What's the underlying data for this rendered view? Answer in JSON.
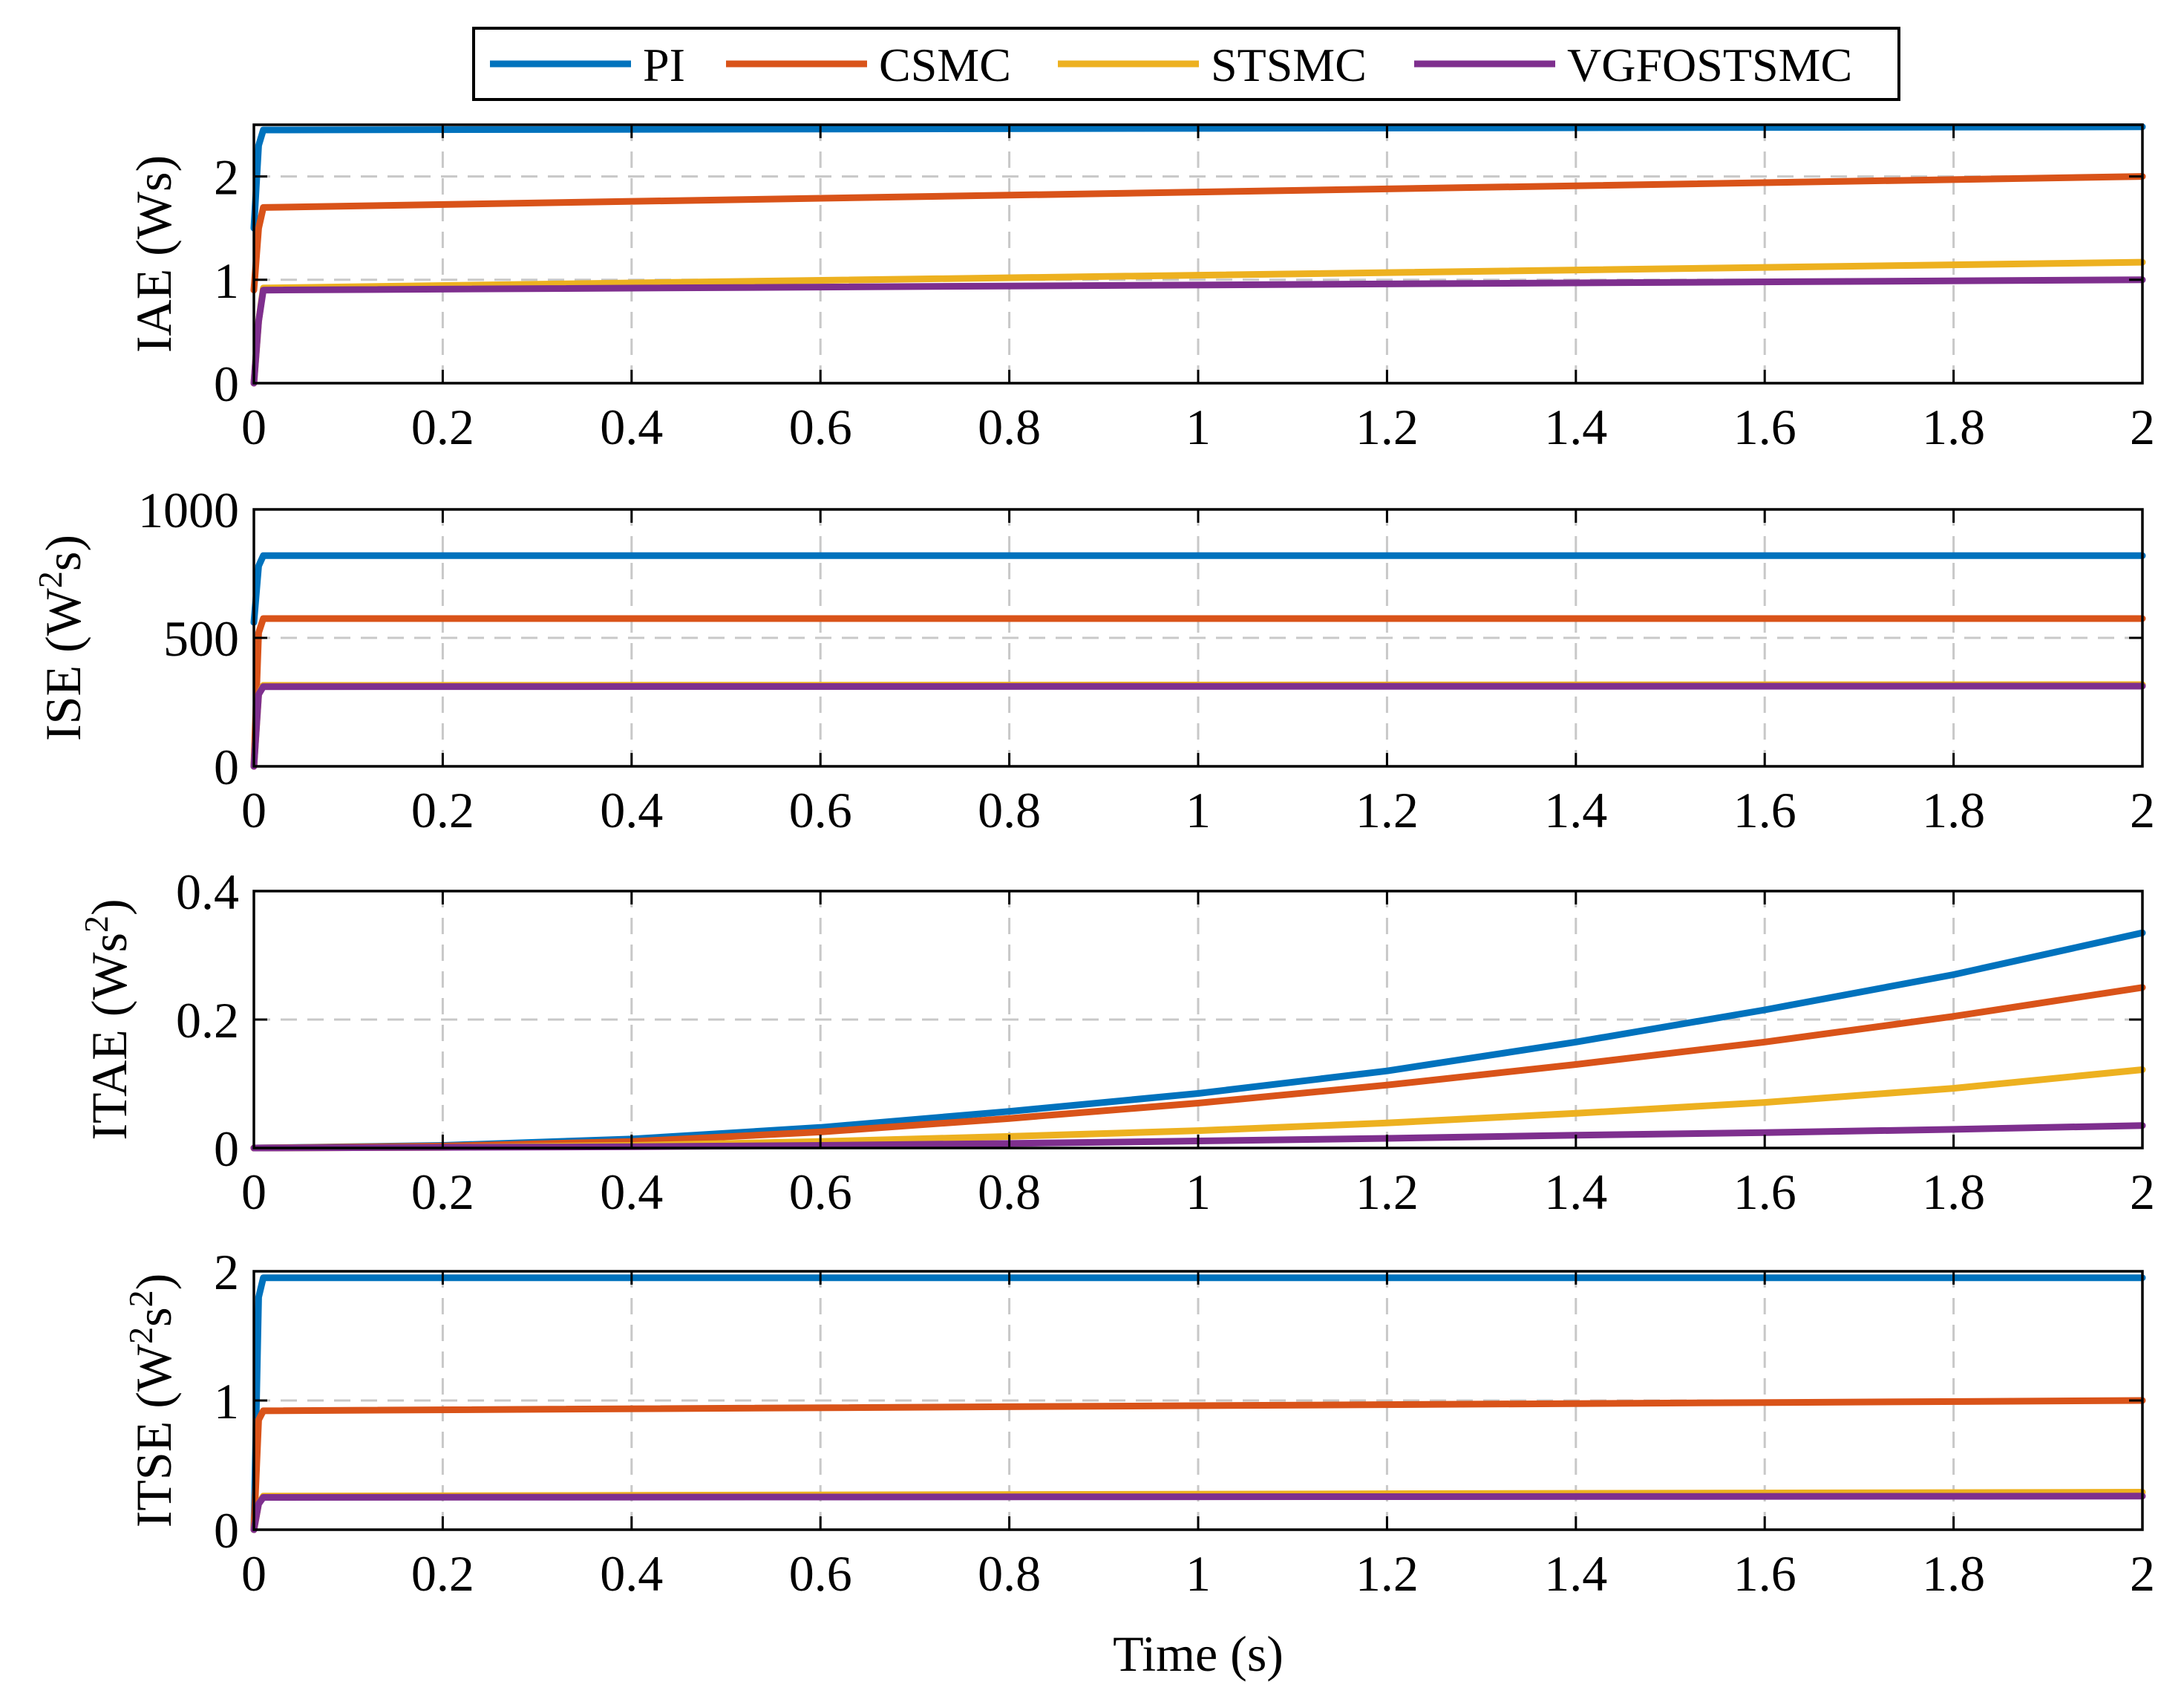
{
  "chart_data": {
    "type": "line",
    "legend": {
      "placement": "top-center",
      "entries": [
        {
          "name": "PI",
          "color": "#0072BD"
        },
        {
          "name": "CSMC",
          "color": "#D95319"
        },
        {
          "name": "STSMC",
          "color": "#EDB120"
        },
        {
          "name": "VGFOSTSMC",
          "color": "#7E2F8E"
        }
      ]
    },
    "shared_x": {
      "xlabel": "Time (s)",
      "xlim": [
        0,
        2
      ],
      "ticks": [
        0,
        0.2,
        0.4,
        0.6,
        0.8,
        1,
        1.2,
        1.4,
        1.6,
        1.8,
        2
      ],
      "tick_labels": [
        "0",
        "0.2",
        "0.4",
        "0.6",
        "0.8",
        "1",
        "1.2",
        "1.4",
        "1.6",
        "1.8",
        "2"
      ]
    },
    "panels": [
      {
        "id": "iae",
        "ylabel_main": "IAE (Ws)",
        "ylabel_sup": "",
        "ylabel_tail": "",
        "ylim": [
          0,
          2.5
        ],
        "yticks": [
          0,
          1,
          2
        ],
        "ytick_labels": [
          "0",
          "1",
          "2"
        ],
        "grid": true,
        "series": [
          {
            "name": "PI",
            "x": [
              0,
              0.005,
              0.01,
              2
            ],
            "y": [
              1.5,
              2.3,
              2.45,
              2.48
            ]
          },
          {
            "name": "CSMC",
            "x": [
              0,
              0.005,
              0.01,
              2
            ],
            "y": [
              0.9,
              1.5,
              1.7,
              2.0
            ]
          },
          {
            "name": "STSMC",
            "x": [
              0,
              0.005,
              0.01,
              2
            ],
            "y": [
              0.0,
              0.6,
              0.92,
              1.17
            ]
          },
          {
            "name": "VGFOSTSMC",
            "x": [
              0,
              0.005,
              0.01,
              2
            ],
            "y": [
              0.0,
              0.6,
              0.9,
              1.0
            ]
          }
        ]
      },
      {
        "id": "ise",
        "ylabel_main": "ISE (W",
        "ylabel_sup": "2",
        "ylabel_tail": "s)",
        "ylim": [
          0,
          1000
        ],
        "yticks": [
          0,
          500,
          1000
        ],
        "ytick_labels": [
          "0",
          "500",
          "1000"
        ],
        "grid": true,
        "series": [
          {
            "name": "PI",
            "x": [
              0,
              0.005,
              0.01,
              2
            ],
            "y": [
              560,
              780,
              820,
              820
            ]
          },
          {
            "name": "CSMC",
            "x": [
              0,
              0.005,
              0.01,
              2
            ],
            "y": [
              0,
              520,
              575,
              575
            ]
          },
          {
            "name": "STSMC",
            "x": [
              0,
              0.005,
              0.01,
              2
            ],
            "y": [
              0,
              280,
              315,
              318
            ]
          },
          {
            "name": "VGFOSTSMC",
            "x": [
              0,
              0.005,
              0.01,
              2
            ],
            "y": [
              0,
              280,
              310,
              312
            ]
          }
        ]
      },
      {
        "id": "itae",
        "ylabel_main": "ITAE (Ws",
        "ylabel_sup": "2",
        "ylabel_tail": ")",
        "ylim": [
          0,
          0.4
        ],
        "yticks": [
          0,
          0.2,
          0.4
        ],
        "ytick_labels": [
          "0",
          "0.2",
          "0.4"
        ],
        "grid": true,
        "series": [
          {
            "name": "PI",
            "x": [
              0,
              0.2,
              0.4,
              0.6,
              0.8,
              1.0,
              1.2,
              1.4,
              1.6,
              1.8,
              2.0
            ],
            "y": [
              0.0,
              0.004,
              0.014,
              0.032,
              0.057,
              0.085,
              0.12,
              0.165,
              0.215,
              0.27,
              0.335
            ]
          },
          {
            "name": "CSMC",
            "x": [
              0,
              0.2,
              0.4,
              0.6,
              0.8,
              1.0,
              1.2,
              1.4,
              1.6,
              1.8,
              2.0
            ],
            "y": [
              0.0,
              0.003,
              0.01,
              0.025,
              0.046,
              0.07,
              0.098,
              0.13,
              0.165,
              0.205,
              0.25
            ]
          },
          {
            "name": "STSMC",
            "x": [
              0,
              0.2,
              0.4,
              0.6,
              0.8,
              1.0,
              1.2,
              1.4,
              1.6,
              1.8,
              2.0
            ],
            "y": [
              0.0,
              0.001,
              0.004,
              0.01,
              0.018,
              0.027,
              0.039,
              0.054,
              0.071,
              0.093,
              0.122
            ]
          },
          {
            "name": "VGFOSTSMC",
            "x": [
              0,
              0.2,
              0.4,
              0.6,
              0.8,
              1.0,
              1.2,
              1.4,
              1.6,
              1.8,
              2.0
            ],
            "y": [
              0.0,
              0.001,
              0.002,
              0.004,
              0.007,
              0.011,
              0.015,
              0.02,
              0.024,
              0.029,
              0.035
            ]
          }
        ]
      },
      {
        "id": "itse",
        "ylabel_main": "ITSE (W",
        "ylabel_sup": "2",
        "ylabel_tail": "s",
        "ylabel_sup2": "2",
        "ylabel_tail2": ")",
        "ylim": [
          0,
          2
        ],
        "yticks": [
          0,
          1,
          2
        ],
        "ytick_labels": [
          "0",
          "1",
          "2"
        ],
        "grid": true,
        "series": [
          {
            "name": "PI",
            "x": [
              0,
              0.005,
              0.01,
              2
            ],
            "y": [
              0.0,
              1.8,
              1.95,
              1.95
            ]
          },
          {
            "name": "CSMC",
            "x": [
              0,
              0.005,
              0.01,
              2
            ],
            "y": [
              0.0,
              0.85,
              0.92,
              1.0
            ]
          },
          {
            "name": "STSMC",
            "x": [
              0,
              0.005,
              0.01,
              2
            ],
            "y": [
              0.0,
              0.2,
              0.26,
              0.29
            ]
          },
          {
            "name": "VGFOSTSMC",
            "x": [
              0,
              0.005,
              0.01,
              2
            ],
            "y": [
              0.0,
              0.2,
              0.25,
              0.26
            ]
          }
        ]
      }
    ]
  }
}
